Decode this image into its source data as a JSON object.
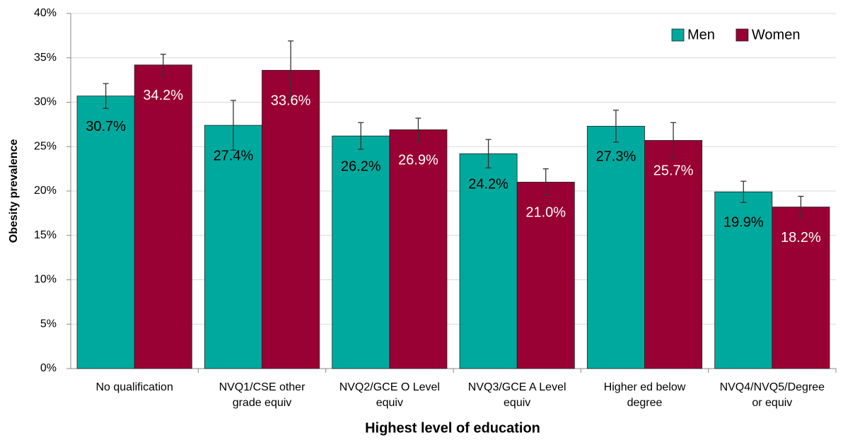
{
  "chart_data": {
    "type": "bar",
    "x_label": "Highest level of education",
    "y_label": "Obesity prevalence",
    "categories": [
      "No qualification",
      "NVQ1/CSE other grade equiv",
      "NVQ2/GCE O Level equiv",
      "NVQ3/GCE A Level equiv",
      "Higher ed below degree",
      "NVQ4/NVQ5/Degree or equiv"
    ],
    "series": [
      {
        "name": "Men",
        "color": "#00a99d",
        "label_color": "#000000",
        "values": [
          30.7,
          27.4,
          26.2,
          24.2,
          27.3,
          19.9
        ],
        "value_labels": [
          "30.7%",
          "27.4%",
          "26.2%",
          "24.2%",
          "27.3%",
          "19.9%"
        ],
        "errors": [
          1.4,
          2.8,
          1.5,
          1.6,
          1.8,
          1.2
        ]
      },
      {
        "name": "Women",
        "color": "#990033",
        "label_color": "#ffffff",
        "values": [
          34.2,
          33.6,
          26.9,
          21.0,
          25.7,
          18.2
        ],
        "value_labels": [
          "34.2%",
          "33.6%",
          "26.9%",
          "21.0%",
          "25.7%",
          "18.2%"
        ],
        "errors": [
          1.2,
          3.3,
          1.3,
          1.5,
          2.0,
          1.2
        ]
      }
    ],
    "ylim": [
      0,
      40
    ],
    "yticks": [
      {
        "value": 0,
        "label": "0%"
      },
      {
        "value": 5,
        "label": "5%"
      },
      {
        "value": 10,
        "label": "10%"
      },
      {
        "value": 15,
        "label": "15%"
      },
      {
        "value": 20,
        "label": "20%"
      },
      {
        "value": 25,
        "label": "25%"
      },
      {
        "value": 30,
        "label": "30%"
      },
      {
        "value": 35,
        "label": "35%"
      },
      {
        "value": 40,
        "label": "40%"
      }
    ],
    "grid": true,
    "legend": "top-right"
  }
}
